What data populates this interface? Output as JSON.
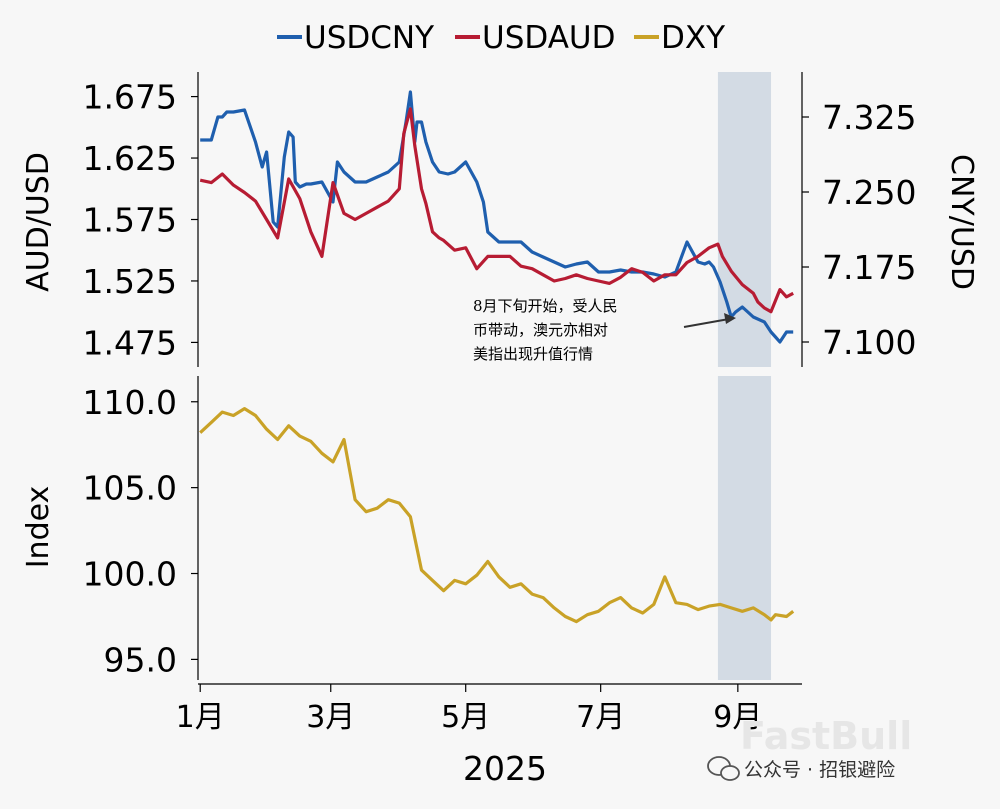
{
  "legend": {
    "usdcny": "USDCNY",
    "usdaud": "USDAUD",
    "dxy": "DXY"
  },
  "annotation": {
    "line1": "8月下旬开始，受人民",
    "line2": "币带动，澳元亦相对",
    "line3": "美指出现升值行情"
  },
  "watermark": {
    "account": "公众号 · 招银避险",
    "brand": "FastBull"
  },
  "chart_data": [
    {
      "type": "line",
      "title": "",
      "x_axis": {
        "tick_labels": [
          "1月",
          "3月",
          "5月",
          "7月",
          "9月"
        ],
        "year_label": "2025",
        "range_days": [
          -1,
          272
        ]
      },
      "left_axis": {
        "label": "AUD/USD",
        "ylim": [
          1.455,
          1.695
        ],
        "ticks": [
          1.475,
          1.525,
          1.575,
          1.625,
          1.675
        ],
        "tick_labels": [
          "1.475",
          "1.525",
          "1.575",
          "1.625",
          "1.675"
        ]
      },
      "right_axis": {
        "label": "CNY/USD",
        "ylim": [
          7.075,
          7.37
        ],
        "ticks": [
          7.1,
          7.175,
          7.25,
          7.325
        ],
        "tick_labels": [
          "7.100",
          "7.175",
          "7.250",
          "7.325"
        ]
      },
      "shaded_period_days": [
        234,
        258
      ],
      "series": [
        {
          "name": "USDCNY",
          "axis": "right",
          "color": "#1f5fae",
          "x": [
            0,
            5,
            8,
            10,
            12,
            15,
            20,
            25,
            28,
            30,
            33,
            35,
            38,
            40,
            42,
            43,
            45,
            48,
            50,
            55,
            60,
            62,
            65,
            70,
            75,
            80,
            85,
            90,
            93,
            95,
            97,
            98,
            100,
            102,
            105,
            108,
            112,
            115,
            120,
            125,
            128,
            130,
            135,
            140,
            145,
            150,
            155,
            160,
            165,
            170,
            175,
            180,
            185,
            190,
            195,
            200,
            205,
            210,
            215,
            220,
            225,
            228,
            230,
            232,
            235,
            238,
            240,
            242,
            245,
            250,
            255,
            258,
            260,
            262,
            265,
            268
          ],
          "values": [
            7.302,
            7.302,
            7.325,
            7.325,
            7.33,
            7.33,
            7.332,
            7.3,
            7.275,
            7.29,
            7.22,
            7.215,
            7.285,
            7.31,
            7.305,
            7.26,
            7.255,
            7.258,
            7.258,
            7.26,
            7.24,
            7.28,
            7.27,
            7.26,
            7.26,
            7.265,
            7.27,
            7.28,
            7.32,
            7.35,
            7.3,
            7.32,
            7.32,
            7.3,
            7.28,
            7.27,
            7.268,
            7.27,
            7.28,
            7.26,
            7.24,
            7.21,
            7.2,
            7.2,
            7.2,
            7.19,
            7.185,
            7.18,
            7.175,
            7.178,
            7.18,
            7.17,
            7.17,
            7.172,
            7.17,
            7.17,
            7.168,
            7.165,
            7.17,
            7.2,
            7.18,
            7.178,
            7.18,
            7.175,
            7.16,
            7.14,
            7.125,
            7.13,
            7.135,
            7.125,
            7.12,
            7.11,
            7.105,
            7.1,
            7.11,
            7.11
          ]
        },
        {
          "name": "USDAUD",
          "axis": "left",
          "color": "#b71c33",
          "x": [
            0,
            5,
            10,
            15,
            20,
            25,
            30,
            35,
            40,
            45,
            50,
            55,
            60,
            65,
            70,
            75,
            80,
            85,
            90,
            92,
            95,
            97,
            100,
            102,
            105,
            108,
            110,
            115,
            120,
            125,
            130,
            135,
            140,
            145,
            150,
            155,
            160,
            165,
            170,
            175,
            180,
            185,
            190,
            195,
            200,
            205,
            210,
            215,
            220,
            225,
            230,
            234,
            236,
            240,
            245,
            250,
            252,
            255,
            258,
            262,
            265,
            268
          ],
          "values": [
            1.607,
            1.605,
            1.612,
            1.603,
            1.597,
            1.59,
            1.575,
            1.56,
            1.608,
            1.592,
            1.565,
            1.545,
            1.605,
            1.58,
            1.575,
            1.58,
            1.585,
            1.59,
            1.6,
            1.645,
            1.665,
            1.635,
            1.6,
            1.588,
            1.565,
            1.56,
            1.558,
            1.55,
            1.552,
            1.535,
            1.545,
            1.545,
            1.545,
            1.537,
            1.535,
            1.53,
            1.525,
            1.527,
            1.53,
            1.527,
            1.525,
            1.523,
            1.528,
            1.535,
            1.532,
            1.525,
            1.53,
            1.53,
            1.54,
            1.545,
            1.552,
            1.555,
            1.545,
            1.533,
            1.522,
            1.515,
            1.508,
            1.503,
            1.5,
            1.518,
            1.512,
            1.515
          ]
        },
        {
          "name": "DXY",
          "axis": "index",
          "color": "#c9a227",
          "x": [
            0,
            5,
            10,
            15,
            20,
            25,
            30,
            35,
            40,
            45,
            50,
            55,
            60,
            65,
            70,
            75,
            80,
            85,
            90,
            95,
            100,
            105,
            110,
            115,
            120,
            125,
            130,
            135,
            140,
            145,
            150,
            155,
            160,
            165,
            170,
            175,
            180,
            185,
            190,
            195,
            200,
            205,
            210,
            215,
            220,
            225,
            230,
            235,
            240,
            245,
            250,
            255,
            258,
            260,
            265,
            268
          ],
          "values": [
            108.2,
            108.8,
            109.4,
            109.2,
            109.6,
            109.2,
            108.4,
            107.8,
            108.6,
            108.0,
            107.7,
            107.0,
            106.5,
            107.8,
            104.3,
            103.6,
            103.8,
            104.3,
            104.1,
            103.3,
            100.2,
            99.6,
            99.0,
            99.6,
            99.4,
            99.9,
            100.7,
            99.8,
            99.2,
            99.4,
            98.8,
            98.6,
            98.0,
            97.5,
            97.2,
            97.6,
            97.8,
            98.3,
            98.6,
            98.0,
            97.7,
            98.2,
            99.8,
            98.3,
            98.2,
            97.9,
            98.1,
            98.2,
            98.0,
            97.8,
            98.0,
            97.6,
            97.3,
            97.6,
            97.5,
            97.8
          ]
        }
      ]
    },
    {
      "type": "line",
      "title": "",
      "y_axis": {
        "label": "Index",
        "ylim": [
          93.8,
          111.5
        ],
        "ticks": [
          95,
          100,
          105,
          110
        ],
        "tick_labels": [
          "95.0",
          "100.0",
          "105.0",
          "110.0"
        ]
      }
    }
  ]
}
